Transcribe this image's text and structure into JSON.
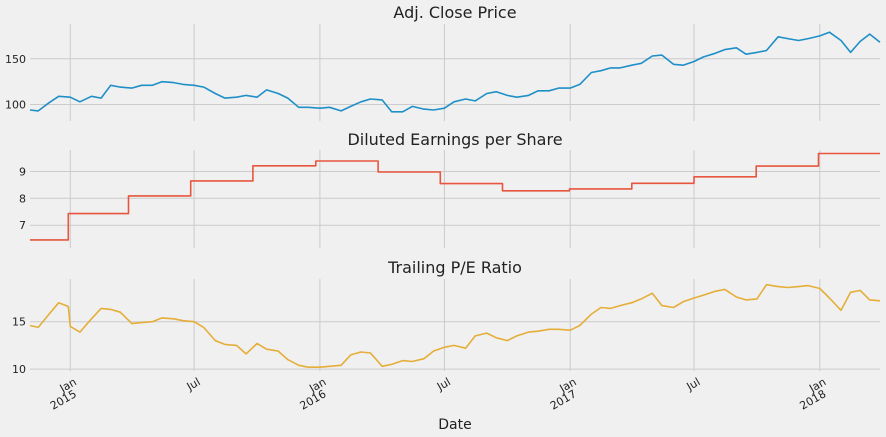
{
  "figure": {
    "background": "#f0f0f0",
    "grid_color": "#cbcbcb",
    "style": "fivethirtyeight"
  },
  "chart_data": [
    {
      "type": "line",
      "title": "Adj. Close Price",
      "xlabel": "",
      "ylabel": "",
      "color": "#1f8fc8",
      "ylim": [
        82,
        188
      ],
      "yticks": [
        100,
        150
      ],
      "grid": true,
      "x": [
        "2014-11-03",
        "2014-11-15",
        "2014-12-01",
        "2014-12-15",
        "2015-01-01",
        "2015-01-15",
        "2015-02-01",
        "2015-02-15",
        "2015-03-01",
        "2015-03-15",
        "2015-04-01",
        "2015-04-15",
        "2015-05-01",
        "2015-05-15",
        "2015-06-01",
        "2015-06-15",
        "2015-07-01",
        "2015-07-15",
        "2015-08-01",
        "2015-08-15",
        "2015-09-01",
        "2015-09-15",
        "2015-10-01",
        "2015-10-15",
        "2015-11-01",
        "2015-11-15",
        "2015-12-01",
        "2015-12-15",
        "2016-01-01",
        "2016-01-15",
        "2016-02-01",
        "2016-02-15",
        "2016-03-01",
        "2016-03-15",
        "2016-04-01",
        "2016-04-15",
        "2016-05-01",
        "2016-05-15",
        "2016-06-01",
        "2016-06-15",
        "2016-07-01",
        "2016-07-15",
        "2016-08-01",
        "2016-08-15",
        "2016-09-01",
        "2016-09-15",
        "2016-10-01",
        "2016-10-15",
        "2016-11-01",
        "2016-11-15",
        "2016-12-01",
        "2016-12-15",
        "2017-01-01",
        "2017-01-15",
        "2017-02-01",
        "2017-02-15",
        "2017-03-01",
        "2017-03-15",
        "2017-04-01",
        "2017-04-15",
        "2017-05-01",
        "2017-05-15",
        "2017-06-01",
        "2017-06-15",
        "2017-07-01",
        "2017-07-15",
        "2017-08-01",
        "2017-08-15",
        "2017-09-01",
        "2017-09-15",
        "2017-10-01",
        "2017-10-15",
        "2017-11-01",
        "2017-11-15",
        "2017-12-01",
        "2017-12-15",
        "2018-01-01",
        "2018-01-15",
        "2018-02-01",
        "2018-02-15",
        "2018-03-01",
        "2018-03-15",
        "2018-03-30"
      ],
      "y": [
        94,
        93,
        102,
        109,
        108,
        103,
        109,
        107,
        121,
        119,
        118,
        121,
        121,
        125,
        124,
        122,
        121,
        119,
        112,
        107,
        108,
        110,
        108,
        116,
        112,
        107,
        97,
        97,
        96,
        97,
        93,
        98,
        103,
        106,
        105,
        92,
        92,
        98,
        95,
        94,
        96,
        103,
        106,
        104,
        112,
        114,
        110,
        108,
        110,
        115,
        115,
        118,
        118,
        122,
        135,
        137,
        140,
        140,
        143,
        145,
        153,
        154,
        144,
        143,
        147,
        152,
        156,
        160,
        162,
        155,
        157,
        159,
        174,
        172,
        170,
        172,
        175,
        179,
        170,
        157,
        169,
        177,
        168
      ]
    },
    {
      "type": "line",
      "title": "Diluted Earnings per Share",
      "xlabel": "",
      "ylabel": "",
      "color": "#e8553e",
      "step": true,
      "ylim": [
        6.15,
        9.8
      ],
      "yticks": [
        7,
        8,
        9
      ],
      "grid": true,
      "x": [
        "2014-11-03",
        "2014-12-29",
        "2015-03-27",
        "2015-06-26",
        "2015-09-25",
        "2015-12-26",
        "2016-03-26",
        "2016-06-25",
        "2016-09-24",
        "2016-12-31",
        "2017-04-01",
        "2017-07-01",
        "2017-09-30",
        "2017-12-30",
        "2018-03-30"
      ],
      "y": [
        6.45,
        7.43,
        8.09,
        8.65,
        9.21,
        9.39,
        8.98,
        8.55,
        8.28,
        8.35,
        8.56,
        8.8,
        9.2,
        9.67,
        9.67
      ]
    },
    {
      "type": "line",
      "title": "Trailing P/E Ratio",
      "xlabel": "Date",
      "ylabel": "",
      "color": "#e5ae38",
      "ylim": [
        9.8,
        19.5
      ],
      "yticks": [
        10,
        15
      ],
      "xtick_labels": [
        {
          "date": "2015-01-01",
          "month": "Jan",
          "year": "2015"
        },
        {
          "date": "2015-07-01",
          "month": "Jul",
          "year": ""
        },
        {
          "date": "2016-01-01",
          "month": "Jan",
          "year": "2016"
        },
        {
          "date": "2016-07-01",
          "month": "Jul",
          "year": ""
        },
        {
          "date": "2017-01-01",
          "month": "Jan",
          "year": "2017"
        },
        {
          "date": "2017-07-01",
          "month": "Jul",
          "year": ""
        },
        {
          "date": "2018-01-01",
          "month": "Jan",
          "year": "2018"
        }
      ],
      "grid": true,
      "x": [
        "2014-11-03",
        "2014-11-15",
        "2014-12-01",
        "2014-12-15",
        "2014-12-29",
        "2015-01-01",
        "2015-01-15",
        "2015-02-01",
        "2015-02-15",
        "2015-03-01",
        "2015-03-15",
        "2015-04-01",
        "2015-04-15",
        "2015-05-01",
        "2015-05-15",
        "2015-06-01",
        "2015-06-15",
        "2015-07-01",
        "2015-07-15",
        "2015-08-01",
        "2015-08-15",
        "2015-09-01",
        "2015-09-15",
        "2015-10-01",
        "2015-10-15",
        "2015-11-01",
        "2015-11-15",
        "2015-12-01",
        "2015-12-15",
        "2016-01-01",
        "2016-01-15",
        "2016-02-01",
        "2016-02-15",
        "2016-03-01",
        "2016-03-15",
        "2016-04-01",
        "2016-04-15",
        "2016-05-01",
        "2016-05-15",
        "2016-06-01",
        "2016-06-15",
        "2016-07-01",
        "2016-07-15",
        "2016-08-01",
        "2016-08-15",
        "2016-09-01",
        "2016-09-15",
        "2016-10-01",
        "2016-10-15",
        "2016-11-01",
        "2016-11-15",
        "2016-12-01",
        "2016-12-15",
        "2017-01-01",
        "2017-01-15",
        "2017-02-01",
        "2017-02-15",
        "2017-03-01",
        "2017-03-15",
        "2017-04-01",
        "2017-04-15",
        "2017-05-01",
        "2017-05-15",
        "2017-06-01",
        "2017-06-15",
        "2017-07-01",
        "2017-07-15",
        "2017-08-01",
        "2017-08-15",
        "2017-09-01",
        "2017-09-15",
        "2017-10-01",
        "2017-10-15",
        "2017-11-01",
        "2017-11-15",
        "2017-12-01",
        "2017-12-15",
        "2018-01-01",
        "2018-01-15",
        "2018-02-01",
        "2018-02-15",
        "2018-03-01",
        "2018-03-15",
        "2018-03-30"
      ],
      "y": [
        14.6,
        14.4,
        15.8,
        17.0,
        16.6,
        14.5,
        13.9,
        15.3,
        16.4,
        16.3,
        16.0,
        14.8,
        14.9,
        15.0,
        15.4,
        15.3,
        15.1,
        15.0,
        14.4,
        13.0,
        12.6,
        12.5,
        11.6,
        12.7,
        12.1,
        11.9,
        11.0,
        10.4,
        10.2,
        10.2,
        10.3,
        10.4,
        11.5,
        11.8,
        11.7,
        10.3,
        10.5,
        10.9,
        10.8,
        11.1,
        11.9,
        12.3,
        12.5,
        12.2,
        13.5,
        13.8,
        13.3,
        13.0,
        13.5,
        13.9,
        14.0,
        14.2,
        14.2,
        14.1,
        14.6,
        15.8,
        16.5,
        16.4,
        16.7,
        17.0,
        17.4,
        18.0,
        16.7,
        16.5,
        17.1,
        17.5,
        17.8,
        18.2,
        18.4,
        17.6,
        17.3,
        17.4,
        18.9,
        18.7,
        18.6,
        18.7,
        18.8,
        18.5,
        17.5,
        16.2,
        18.1,
        18.3,
        17.3,
        17.2
      ]
    }
  ]
}
